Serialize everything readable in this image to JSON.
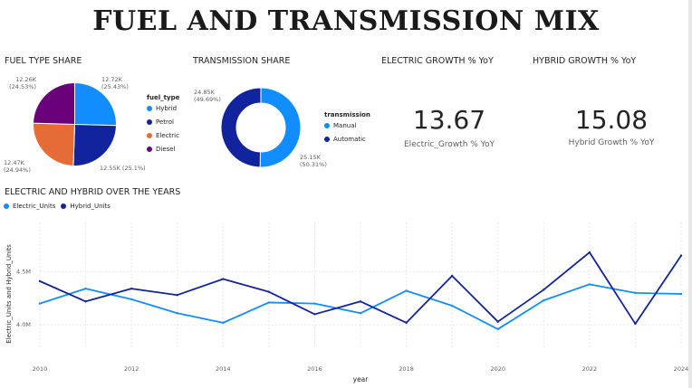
{
  "title": "FUEL AND TRANSMISSION MIX",
  "fuel": {
    "title": "FUEL TYPE SHARE",
    "legend_title": "fuel_type",
    "slices": [
      {
        "name": "Hybrid",
        "value": 12.72,
        "label": "12.72K",
        "pct": "(25.43%)",
        "color": "#118dff"
      },
      {
        "name": "Petrol",
        "value": 12.55,
        "label": "12.55K (25.1%)",
        "pct": "",
        "color": "#12239e"
      },
      {
        "name": "Electric",
        "value": 12.47,
        "label": "12.47K",
        "pct": "(24.94%)",
        "color": "#e66c37"
      },
      {
        "name": "Diesel",
        "value": 12.26,
        "label": "12.26K",
        "pct": "(24.53%)",
        "color": "#6b007b"
      }
    ]
  },
  "transmission": {
    "title": "TRANSMISSION SHARE",
    "legend_title": "transmission",
    "slices": [
      {
        "name": "Manual",
        "value": 25.15,
        "label": "25.15K",
        "pct": "(50.31%)",
        "color": "#118dff"
      },
      {
        "name": "Automatic",
        "value": 24.85,
        "label": "24.85K",
        "pct": "(49.69%)",
        "color": "#12239e"
      }
    ]
  },
  "kpi_electric": {
    "title": "ELECTRIC GROWTH % YoY",
    "value": "13.67",
    "label": "Electric_Growth % YoY"
  },
  "kpi_hybrid": {
    "title": "HYBRID GROWTH % YoY",
    "value": "15.08",
    "label": "Hybrid Growth % YoY"
  },
  "line": {
    "title": "ELECTRIC AND HYBRID OVER THE YEARS",
    "legend": [
      "Electric_Units",
      "Hybrid_Units"
    ]
  },
  "chart_data": [
    {
      "type": "pie",
      "title": "FUEL TYPE SHARE",
      "legend_title": "fuel_type",
      "categories": [
        "Hybrid",
        "Petrol",
        "Electric",
        "Diesel"
      ],
      "values": [
        12720,
        12550,
        12470,
        12260
      ],
      "percent": [
        25.43,
        25.1,
        24.94,
        24.53
      ]
    },
    {
      "type": "pie",
      "title": "TRANSMISSION SHARE",
      "legend_title": "transmission",
      "donut": true,
      "categories": [
        "Manual",
        "Automatic"
      ],
      "values": [
        25150,
        24850
      ],
      "percent": [
        50.31,
        49.69
      ]
    },
    {
      "type": "line",
      "title": "ELECTRIC AND HYBRID OVER THE YEARS",
      "xlabel": "year",
      "ylabel": "Electric_Units and Hybrid_Units",
      "x": [
        2010,
        2011,
        2012,
        2013,
        2014,
        2015,
        2016,
        2017,
        2018,
        2019,
        2020,
        2021,
        2022,
        2023,
        2024
      ],
      "xticks": [
        "2010",
        "2012",
        "2014",
        "2016",
        "2018",
        "2020",
        "2022",
        "2024"
      ],
      "yticks": [
        "4.0M",
        "4.5M"
      ],
      "ylim": [
        3.79,
        4.96
      ],
      "grid": true,
      "legend_position": "top-left",
      "series": [
        {
          "name": "Electric_Units",
          "color": "#118dff",
          "values": [
            4.2,
            4.34,
            4.24,
            4.11,
            4.02,
            4.21,
            4.2,
            4.11,
            4.32,
            4.18,
            3.96,
            4.23,
            4.38,
            4.3,
            4.29
          ]
        },
        {
          "name": "Hybrid_Units",
          "color": "#12239e",
          "values": [
            4.41,
            4.22,
            4.34,
            4.28,
            4.43,
            4.31,
            4.1,
            4.22,
            4.02,
            4.46,
            4.03,
            4.33,
            4.68,
            4.01,
            4.65
          ]
        }
      ]
    }
  ]
}
